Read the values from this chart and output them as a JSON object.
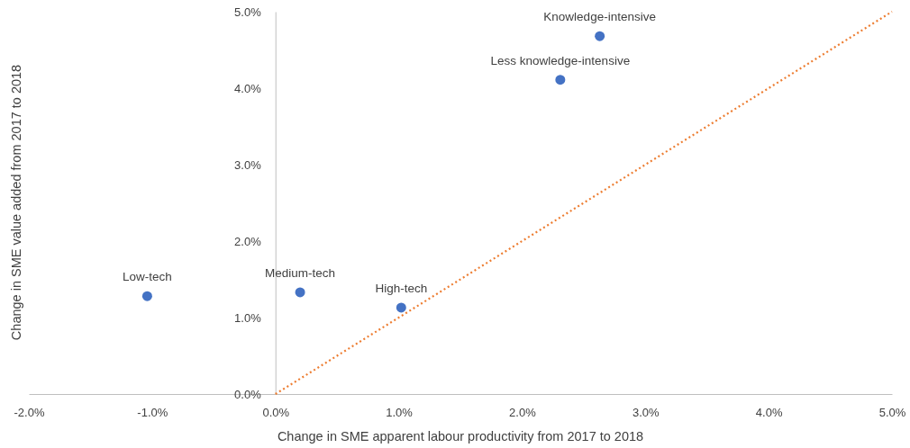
{
  "chart_data": {
    "type": "scatter",
    "xlabel": "Change in SME apparent labour productivity from 2017 to 2018",
    "ylabel": "Change in  SME value added from 2017 to 2018",
    "xlim": [
      -2,
      5
    ],
    "ylim": [
      0,
      5
    ],
    "xticks": [
      {
        "value": -2,
        "label": "-2.0%"
      },
      {
        "value": -1,
        "label": "-1.0%"
      },
      {
        "value": 0,
        "label": "0.0%"
      },
      {
        "value": 1,
        "label": "1.0%"
      },
      {
        "value": 2,
        "label": "2.0%"
      },
      {
        "value": 3,
        "label": "3.0%"
      },
      {
        "value": 4,
        "label": "4.0%"
      },
      {
        "value": 5,
        "label": "5.0%"
      }
    ],
    "yticks": [
      {
        "value": 0,
        "label": "0.0%"
      },
      {
        "value": 1,
        "label": "1.0%"
      },
      {
        "value": 2,
        "label": "2.0%"
      },
      {
        "value": 3,
        "label": "3.0%"
      },
      {
        "value": 4,
        "label": "4.0%"
      },
      {
        "value": 5,
        "label": "5.0%"
      }
    ],
    "grid": false,
    "series": [
      {
        "color": "#4472c4",
        "marker": "circle",
        "x": [
          -1.04,
          0.2,
          1.02,
          2.31,
          2.63
        ],
        "values": [
          1.28,
          1.33,
          1.13,
          4.11,
          4.68
        ]
      },
      {
        "type": "line",
        "color": "#ed7d31",
        "line_style": "dotted",
        "marker": "none",
        "x": [
          0,
          5
        ],
        "values": [
          0,
          5
        ]
      }
    ],
    "annotations": [
      {
        "text": "Low-tech",
        "x": -1.04,
        "y": 1.28
      },
      {
        "text": "Medium-tech",
        "x": 0.2,
        "y": 1.33
      },
      {
        "text": "High-tech",
        "x": 1.02,
        "y": 1.13
      },
      {
        "text": "Less knowledge-intensive",
        "x": 2.31,
        "y": 4.11
      },
      {
        "text": "Knowledge-intensive",
        "x": 2.63,
        "y": 4.68
      }
    ]
  }
}
